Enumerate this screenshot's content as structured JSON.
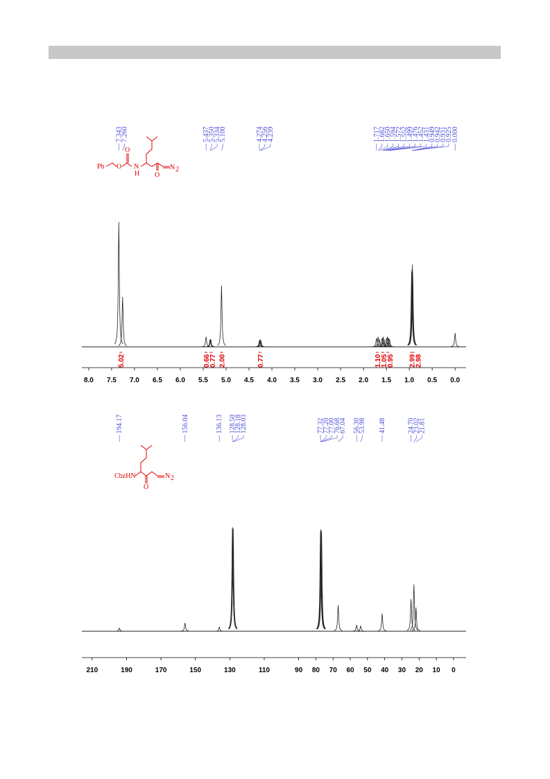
{
  "chart_data": [
    {
      "type": "nmr",
      "xlim": [
        8.15,
        -0.24
      ],
      "xticks": [
        {
          "value": 8,
          "label": "8.0"
        },
        7.5,
        {
          "value": 7,
          "label": "7.0"
        },
        6.5,
        {
          "value": 6,
          "label": "6.0"
        },
        5.5,
        {
          "value": 5,
          "label": "5.0"
        },
        4.5,
        {
          "value": 4,
          "label": "4.0"
        },
        3.5,
        {
          "value": 3,
          "label": "3.0"
        },
        2.5,
        {
          "value": 2,
          "label": "2.0"
        },
        1.5,
        {
          "value": 1,
          "label": "1.0"
        },
        0.5,
        {
          "value": 0,
          "label": "0.0"
        }
      ],
      "x": [
        7.343,
        7.26,
        5.437,
        5.35,
        5.334,
        5.1,
        4.274,
        4.256,
        4.239,
        1.717,
        1.682,
        1.65,
        1.594,
        1.572,
        1.552,
        1.499,
        1.476,
        1.452,
        1.431,
        0.949,
        0.942,
        0.931,
        0.925,
        0
      ],
      "values": [
        100,
        40,
        8,
        6,
        6,
        49,
        5,
        6,
        5,
        7,
        8,
        6,
        7,
        8,
        6,
        7,
        8,
        7,
        6,
        60,
        62,
        66,
        58,
        11
      ],
      "peak_labels": [
        "7.343",
        "7.260",
        "5.437",
        "5.350",
        "5.334",
        "5.100",
        "4.274",
        "4.256",
        "4.239",
        "1.717",
        "1.682",
        "1.650",
        "1.594",
        "1.572",
        "1.552",
        "1.499",
        "1.476",
        "1.452",
        "1.431",
        "0.949",
        "0.942",
        "0.931",
        "0.925",
        "0.000"
      ],
      "integrals": {
        "x": [
          7.3,
          5.44,
          5.33,
          5.1,
          4.26,
          1.7,
          1.58,
          1.47,
          0.95,
          0.92
        ],
        "values": [
          5.02,
          0.66,
          0.77,
          2,
          0.77,
          1.1,
          1.05,
          0.95,
          2.99,
          2.98
        ],
        "value_labels": [
          "5.02",
          "0.66",
          "0.77",
          "2.00",
          "0.77",
          "1.10",
          "1.05",
          "0.95",
          "2.99",
          "2.98"
        ]
      },
      "structure": [
        "Ph",
        "O",
        "O",
        "N",
        "H",
        "O",
        "N",
        "2"
      ],
      "color": "#222222"
    },
    {
      "type": "nmr",
      "xlim": [
        216,
        -7.3
      ],
      "xticks": [
        210,
        190,
        170,
        150,
        130,
        110,
        90,
        80,
        70,
        60,
        50,
        40,
        30,
        20,
        10,
        0
      ],
      "x": [
        194.17,
        156.04,
        136.13,
        128.5,
        128.18,
        128.03,
        77.32,
        77.2,
        77,
        76.68,
        67.04,
        56.3,
        53.98,
        41.48,
        24.7,
        23.02,
        21.81
      ],
      "values": [
        3,
        8,
        4,
        100,
        98,
        99,
        95,
        97,
        98,
        96,
        25,
        6,
        5,
        17,
        31,
        45,
        23
      ],
      "peak_labels": [
        "194.17",
        "156.04",
        "136.13",
        "128.50",
        "128.18",
        "128.03",
        "77.32",
        "77.20",
        "77.00",
        "76.68",
        "67.04",
        "56.30",
        "53.98",
        "41.48",
        "24.70",
        "23.02",
        "21.81"
      ],
      "structure": [
        "CbzHN",
        "O",
        "N",
        "2"
      ],
      "color": "#222222"
    }
  ]
}
